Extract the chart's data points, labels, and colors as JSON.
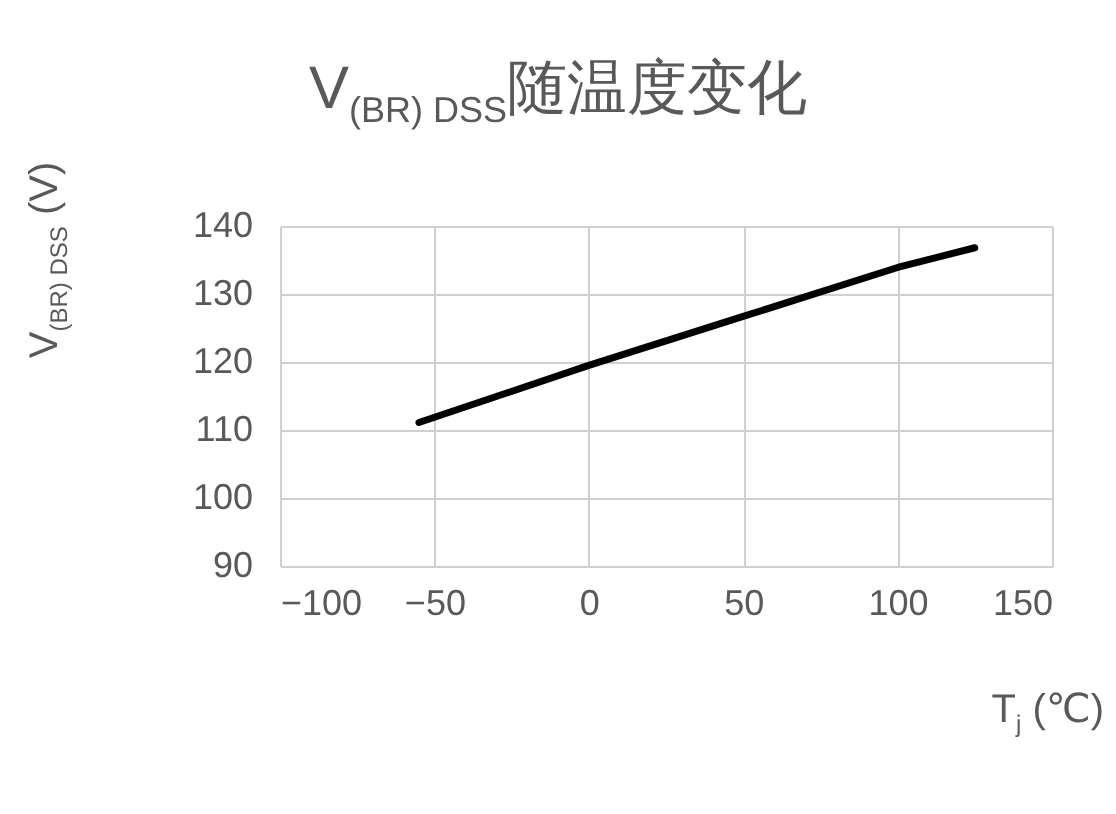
{
  "chart_data": {
    "type": "line",
    "title": "V$_{(BR) DSS}$随温度变化",
    "xlabel": "T$_{j}$ (℃)",
    "ylabel": "V$_{(BR) DSS}$ (V)",
    "x": [
      -55,
      0,
      50,
      100,
      125
    ],
    "series": [
      {
        "color": "#000000",
        "values": [
          111.1,
          119.5,
          126.7,
          133.9,
          136.8
        ]
      }
    ],
    "xlim": [
      -100,
      150
    ],
    "xticks": [
      -100,
      -50,
      0,
      50,
      100,
      150
    ],
    "ylim": [
      90,
      140
    ],
    "yticks": [
      90,
      100,
      110,
      120,
      130,
      140
    ],
    "grid": true,
    "marker": "none",
    "line_style": "solid",
    "legend": false
  }
}
